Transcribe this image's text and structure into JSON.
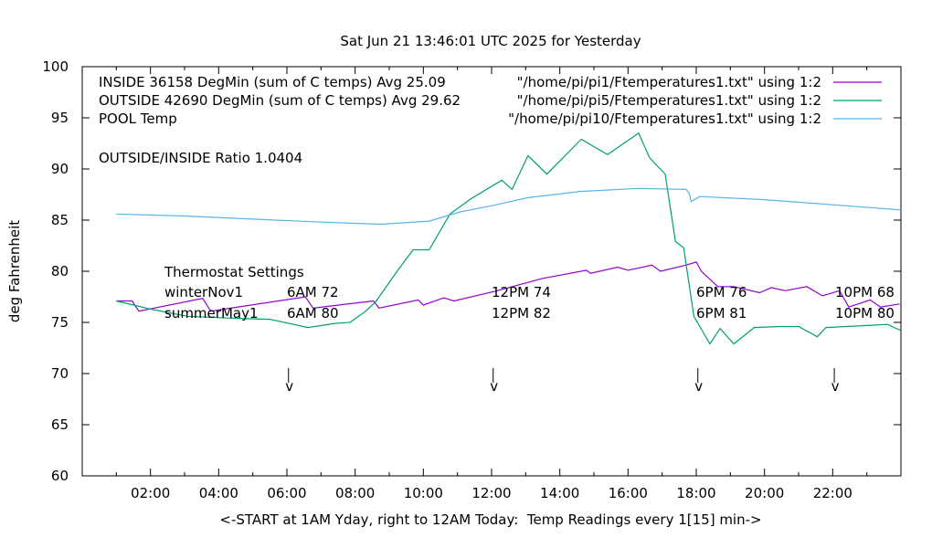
{
  "chart_data": {
    "type": "line",
    "title": "Sat Jun 21 13:46:01 UTC 2025 for Yesterday",
    "xlabel": "<-START at 1AM Yday, right to 12AM Today:  Temp Readings every 1[15] min->",
    "ylabel": "deg Fahrenheit",
    "xlim": [
      0,
      24
    ],
    "ylim": [
      60,
      100
    ],
    "grid": false,
    "legend_position": "top-right",
    "y_ticks": [
      60,
      65,
      70,
      75,
      80,
      85,
      90,
      95,
      100
    ],
    "x_ticks": [
      {
        "value": 2,
        "label": "02:00"
      },
      {
        "value": 4,
        "label": "04:00"
      },
      {
        "value": 6,
        "label": "06:00"
      },
      {
        "value": 8,
        "label": "08:00"
      },
      {
        "value": 10,
        "label": "10:00"
      },
      {
        "value": 12,
        "label": "12:00"
      },
      {
        "value": 14,
        "label": "14:00"
      },
      {
        "value": 16,
        "label": "16:00"
      },
      {
        "value": 18,
        "label": "18:00"
      },
      {
        "value": 20,
        "label": "20:00"
      },
      {
        "value": 22,
        "label": "22:00"
      }
    ],
    "series": [
      {
        "name": "INSIDE 36158 DegMin (sum of C temps) Avg 25.09",
        "source": "\"/home/pi/pi1/Ftemperatures1.txt\" using 1:2",
        "color": "#9400d3",
        "x": [
          1.0,
          1.46,
          1.66,
          3.53,
          3.77,
          6.54,
          6.77,
          8.54,
          8.7,
          9.85,
          10.0,
          10.6,
          10.9,
          12.17,
          13.5,
          14.78,
          14.9,
          15.7,
          16.0,
          16.7,
          16.95,
          17.7,
          18.0,
          18.15,
          18.63,
          19.1,
          19.86,
          20.2,
          20.6,
          21.24,
          21.7,
          22.2,
          22.47,
          23.1,
          23.4,
          23.96
        ],
        "y": [
          77.1,
          77.1,
          76.1,
          77.35,
          76.1,
          77.5,
          76.4,
          77.1,
          76.4,
          77.2,
          76.7,
          77.4,
          77.1,
          78.1,
          79.3,
          80.1,
          79.8,
          80.4,
          80.1,
          80.6,
          80.0,
          80.6,
          80.9,
          80.0,
          78.5,
          78.5,
          77.9,
          78.4,
          78.1,
          78.5,
          77.6,
          78.1,
          76.5,
          77.2,
          76.5,
          76.8
        ]
      },
      {
        "name": "OUTSIDE 42690 DegMin (sum of C temps) Avg 29.62",
        "source": "\"/home/pi/pi5/Ftemperatures1.txt\" using 1:2",
        "color": "#009e73",
        "x": [
          1.0,
          2.0,
          3.08,
          4.47,
          5.5,
          6.62,
          7.4,
          7.85,
          8.31,
          8.6,
          9.23,
          9.7,
          10.17,
          10.78,
          11.4,
          12.3,
          12.6,
          13.07,
          13.62,
          14.63,
          15.4,
          16.31,
          16.63,
          17.09,
          17.39,
          17.63,
          17.93,
          18.4,
          18.7,
          19.1,
          19.7,
          20.5,
          21.0,
          21.55,
          21.8,
          23.0,
          23.6,
          24.0
        ],
        "y": [
          77.1,
          76.3,
          75.6,
          75.4,
          75.3,
          74.5,
          74.9,
          75.0,
          76.1,
          77.0,
          80.0,
          82.1,
          82.1,
          85.6,
          87.1,
          88.9,
          88.0,
          91.3,
          89.5,
          92.9,
          91.4,
          93.5,
          91.1,
          89.5,
          82.9,
          82.3,
          75.6,
          72.9,
          74.4,
          72.9,
          74.5,
          74.6,
          74.6,
          73.6,
          74.5,
          74.7,
          74.8,
          74.2
        ]
      },
      {
        "name": "POOL Temp",
        "source": "\"/home/pi/pi10/Ftemperatures1.txt\" using 1:2",
        "color": "#56b4e9",
        "x": [
          1.0,
          3.0,
          5.0,
          7.0,
          8.77,
          10.17,
          11.08,
          12.0,
          13.07,
          14.6,
          16.3,
          17.7,
          17.8,
          17.85,
          18.1,
          20.0,
          22.0,
          24.0
        ],
        "y": [
          85.6,
          85.4,
          85.1,
          84.8,
          84.6,
          84.9,
          85.8,
          86.4,
          87.2,
          87.8,
          88.1,
          88.0,
          87.6,
          86.8,
          87.3,
          87.0,
          86.5,
          86.0
        ]
      }
    ],
    "annotations": {
      "ratio": "OUTSIDE/INSIDE Ratio 1.0404",
      "thermostat_title": "Thermostat Settings",
      "rows": [
        {
          "label": "winterNov1",
          "settings": [
            "6AM 72",
            "12PM 74",
            "6PM 76",
            "10PM 68"
          ]
        },
        {
          "label": "summerMay1",
          "settings": [
            "6AM 80",
            "12PM 82",
            "6PM 81",
            "10PM 80"
          ]
        }
      ],
      "marker_hours": [
        6.1,
        12.1,
        18.1,
        22.1
      ],
      "marker_text": "v"
    }
  }
}
